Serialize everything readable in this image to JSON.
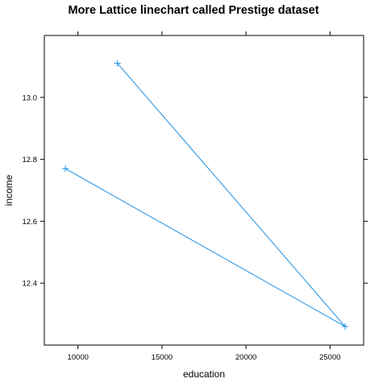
{
  "chart_data": {
    "type": "line",
    "title": "More Lattice linechart called Prestige dataset",
    "xlabel": "education",
    "ylabel": "income",
    "xlim": [
      8000,
      27000
    ],
    "ylim": [
      12.2,
      13.2
    ],
    "x_ticks": [
      10000,
      15000,
      20000,
      25000
    ],
    "y_ticks": [
      12.4,
      12.6,
      12.8,
      13.0
    ],
    "x_tick_labels": [
      "10000",
      "15000",
      "20000",
      "25000"
    ],
    "y_tick_labels": [
      "12.4",
      "12.6",
      "12.8",
      "13.0"
    ],
    "grid": false,
    "series": [
      {
        "x": [
          9250,
          25900,
          12350
        ],
        "y": [
          12.77,
          12.26,
          13.11
        ]
      }
    ],
    "marker": "+",
    "color": "#1e90e6"
  }
}
